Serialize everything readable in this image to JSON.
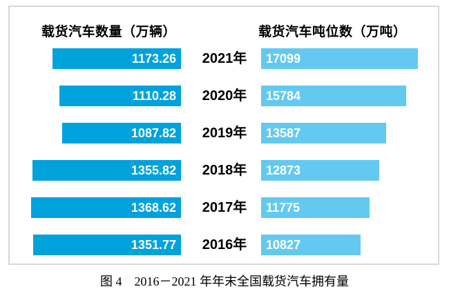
{
  "page": {
    "caption": "图 4　2016－2021 年年末全国载货汽车拥有量"
  },
  "headers": {
    "left": "载货汽车数量（万辆）",
    "right": "载货汽车吨位数（万吨）"
  },
  "chart_data": {
    "type": "bar",
    "variant": "tornado-butterfly",
    "title": "图 4 2016－2021 年年末全国载货汽车拥有量",
    "categories": [
      "2021年",
      "2020年",
      "2019年",
      "2018年",
      "2017年",
      "2016年"
    ],
    "series": [
      {
        "name": "载货汽车数量（万辆）",
        "values": [
          1173.26,
          1110.28,
          1087.82,
          1355.82,
          1368.62,
          1351.77
        ],
        "color": "#00A2DC",
        "orientation": "right-aligned bars growing leftward",
        "axis_range": [
          0,
          1400
        ]
      },
      {
        "name": "载货汽车吨位数（万吨）",
        "values": [
          17099,
          15784,
          13587,
          12873,
          11775,
          10827
        ],
        "color": "#63C9F0",
        "orientation": "left-aligned bars growing rightward",
        "axis_range": [
          0,
          17500
        ]
      }
    ],
    "value_labels": "inside bars, white bold; left series right-aligned, right series left-aligned",
    "grid": false,
    "legend": "column headers above each bar group",
    "border_color": "#d8d8d8"
  },
  "rows": [
    {
      "year": "2021年",
      "left": "1173.26",
      "right": "17099"
    },
    {
      "year": "2020年",
      "left": "1110.28",
      "right": "15784"
    },
    {
      "year": "2019年",
      "left": "1087.82",
      "right": "13587"
    },
    {
      "year": "2018年",
      "left": "1355.82",
      "right": "12873"
    },
    {
      "year": "2017年",
      "left": "1368.62",
      "right": "11775"
    },
    {
      "year": "2016年",
      "left": "1351.77",
      "right": "10827"
    }
  ]
}
